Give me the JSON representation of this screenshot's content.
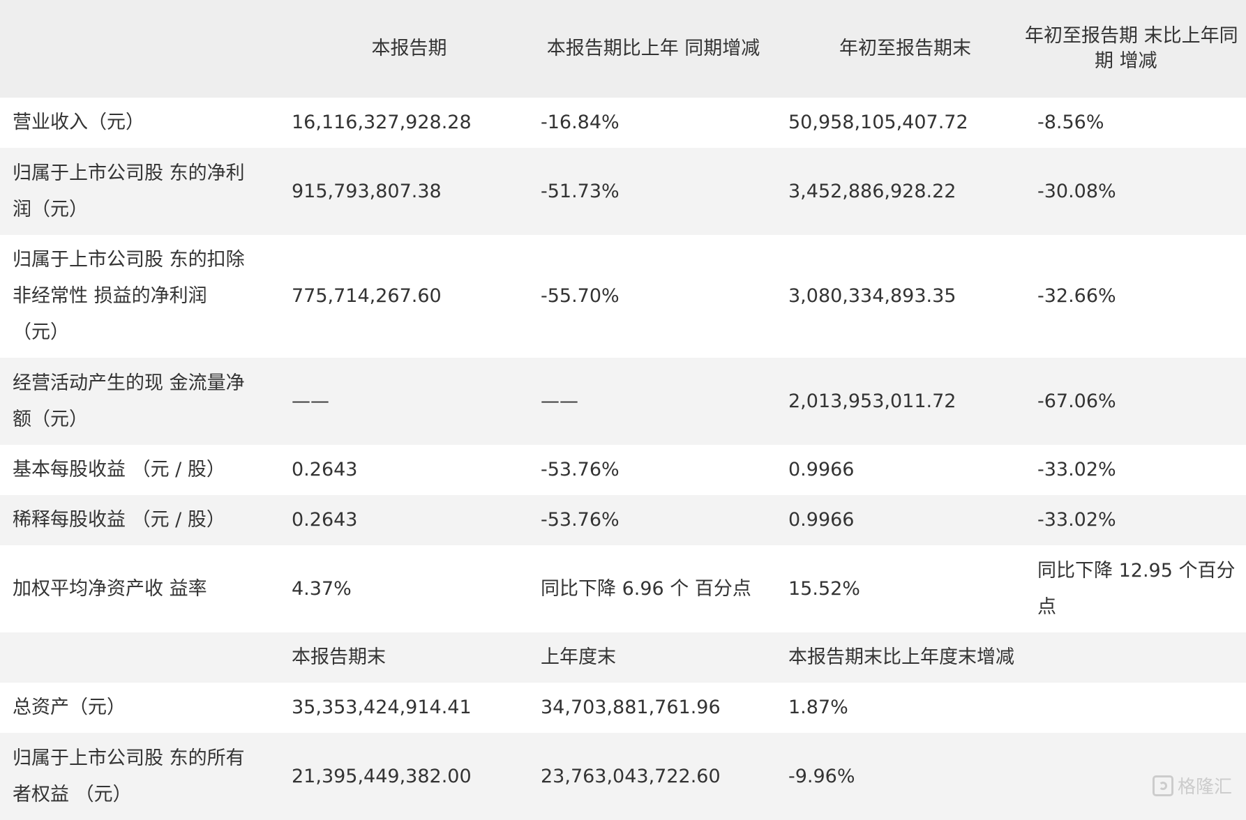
{
  "header": {
    "col0": "",
    "col1": "本报告期",
    "col2": "本报告期比上年 同期增减",
    "col3": "年初至报告期末",
    "col4_line1": "年初至报告期 末比上年同",
    "col4_line2": "期 增减"
  },
  "rows": [
    {
      "label": "营业收入（元）",
      "v1": "16,116,327,928.28",
      "v2": "-16.84%",
      "v3": "50,958,105,407.72",
      "v4": "-8.56%"
    },
    {
      "label_line1": "归属于上市公司股 东的净利",
      "label_line2": "润（元）",
      "v1": "915,793,807.38",
      "v2": "-51.73%",
      "v3": "3,452,886,928.22",
      "v4": "-30.08%"
    },
    {
      "label_line1": "归属于上市公司股 东的扣除",
      "label_line2": "非经常性 损益的净利润",
      "label_line3": "（元）",
      "v1": "775,714,267.60",
      "v2": "-55.70%",
      "v3": "3,080,334,893.35",
      "v4": "-32.66%"
    },
    {
      "label_line1": "经营活动产生的现 金流量净",
      "label_line2": "额（元）",
      "v1": "——",
      "v2": "——",
      "v3": "2,013,953,011.72",
      "v4": "-67.06%"
    },
    {
      "label": "基本每股收益 （元 / 股）",
      "v1": "0.2643",
      "v2": "-53.76%",
      "v3": "0.9966",
      "v4": "-33.02%"
    },
    {
      "label": "稀释每股收益 （元 / 股）",
      "v1": "0.2643",
      "v2": "-53.76%",
      "v3": "0.9966",
      "v4": "-33.02%"
    },
    {
      "label": "加权平均净资产收 益率",
      "v1": "4.37%",
      "v2": "同比下降 6.96 个 百分点",
      "v3": "15.52%",
      "v4_line1": "同比下降 12.95 个百分",
      "v4_line2": "点"
    },
    {
      "label": "",
      "v1": "本报告期末",
      "v2": "上年度末",
      "v3": "本报告期末比上年度末增减",
      "v4": ""
    },
    {
      "label": "总资产（元）",
      "v1": "35,353,424,914.41",
      "v2": "34,703,881,761.96",
      "v3": "1.87%",
      "v4": ""
    },
    {
      "label_line1": "归属于上市公司股 东的所有",
      "label_line2": "者权益 （元）",
      "v1": "21,395,449,382.00",
      "v2": "23,763,043,722.60",
      "v3": "-9.96%",
      "v4": ""
    }
  ],
  "watermark": {
    "text": "格隆汇",
    "icon": "gelonghui-logo-icon"
  }
}
